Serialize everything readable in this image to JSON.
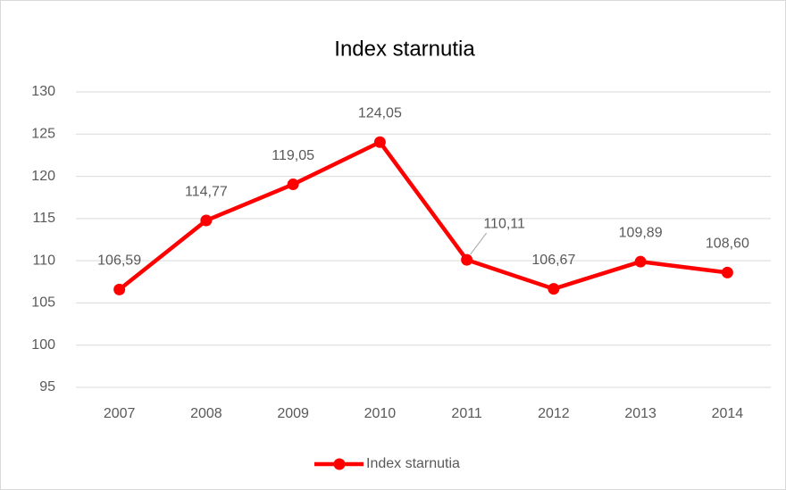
{
  "chart_data": {
    "type": "line",
    "title": "Index starnutia",
    "categories": [
      "2007",
      "2008",
      "2009",
      "2010",
      "2011",
      "2012",
      "2013",
      "2014"
    ],
    "series": [
      {
        "name": "Index starnutia",
        "color": "#ff0000",
        "values": [
          106.59,
          114.77,
          119.05,
          124.05,
          110.11,
          106.67,
          109.89,
          108.6
        ],
        "value_labels": [
          "106,59",
          "114,77",
          "119,05",
          "124,05",
          "110,11",
          "106,67",
          "109,89",
          "108,60"
        ]
      }
    ],
    "ylim": [
      95,
      130
    ],
    "yticks": [
      95,
      100,
      105,
      110,
      115,
      120,
      125,
      130
    ],
    "grid": true,
    "legend": "bottom"
  }
}
